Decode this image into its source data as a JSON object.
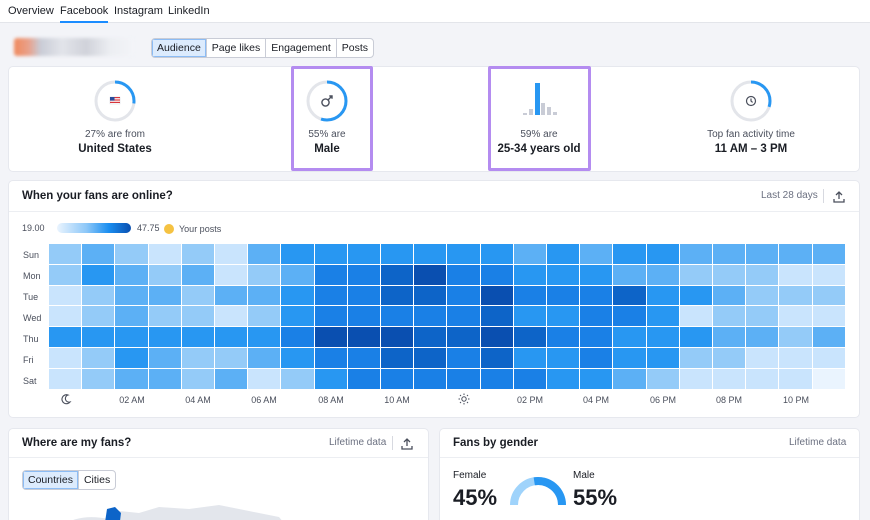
{
  "top_tabs": [
    {
      "label": "Overview",
      "active": false
    },
    {
      "label": "Facebook",
      "active": true
    },
    {
      "label": "Instagram",
      "active": false
    },
    {
      "label": "LinkedIn",
      "active": false
    }
  ],
  "sub_tabs": [
    {
      "label": "Audience",
      "active": true
    },
    {
      "label": "Page likes",
      "active": false
    },
    {
      "label": "Engagement",
      "active": false
    },
    {
      "label": "Posts",
      "active": false
    }
  ],
  "stats": [
    {
      "sub": "27% are from",
      "big": "United States",
      "icon": "us-flag-icon",
      "fraction": 0.27
    },
    {
      "sub": "55% are",
      "big": "Male",
      "icon": "male-symbol-icon",
      "fraction": 0.55
    },
    {
      "sub": "59% are",
      "big": "25-34 years old",
      "icon": "age-bars-icon",
      "fraction": 0.59
    },
    {
      "sub": "Top fan activity time",
      "big": "11 AM – 3 PM",
      "icon": "clock-icon",
      "fraction": 0.3
    }
  ],
  "online": {
    "title": "When your fans are online?",
    "period": "Last 28 days",
    "legend_min": "19.00",
    "legend_max": "47.75",
    "legend_posts": "Your posts",
    "days": [
      "Sun",
      "Mon",
      "Tue",
      "Wed",
      "Thu",
      "Fri",
      "Sat"
    ],
    "hours": [
      "02 AM",
      "04 AM",
      "06 AM",
      "08 AM",
      "10 AM",
      "02 PM",
      "04 PM",
      "06 PM",
      "08 PM",
      "10 PM"
    ],
    "colors": [
      "#eaf4fe",
      "#c9e4fd",
      "#94cbf8",
      "#5cb0f5",
      "#2897f2",
      "#1a80e6",
      "#0d64c8",
      "#0a4fb0"
    ],
    "grid": [
      [
        2,
        3,
        2,
        1,
        2,
        1,
        3,
        4,
        4,
        4,
        4,
        4,
        4,
        4,
        3,
        4,
        3,
        4,
        4,
        3,
        3,
        3,
        3,
        3
      ],
      [
        2,
        4,
        3,
        2,
        3,
        1,
        2,
        3,
        5,
        5,
        6,
        7,
        5,
        5,
        4,
        4,
        4,
        3,
        3,
        2,
        2,
        2,
        1,
        1
      ],
      [
        1,
        2,
        3,
        3,
        2,
        3,
        3,
        4,
        5,
        5,
        6,
        6,
        5,
        7,
        5,
        5,
        5,
        6,
        4,
        4,
        3,
        2,
        2,
        2
      ],
      [
        1,
        2,
        3,
        2,
        2,
        1,
        2,
        4,
        5,
        5,
        5,
        5,
        5,
        6,
        4,
        4,
        5,
        5,
        4,
        1,
        2,
        2,
        1,
        1
      ],
      [
        4,
        4,
        4,
        4,
        4,
        4,
        4,
        5,
        7,
        7,
        7,
        6,
        6,
        7,
        6,
        5,
        5,
        4,
        4,
        4,
        3,
        3,
        2,
        3
      ],
      [
        1,
        2,
        4,
        3,
        2,
        2,
        3,
        4,
        5,
        5,
        6,
        6,
        5,
        6,
        4,
        4,
        5,
        4,
        4,
        2,
        2,
        1,
        1,
        1
      ],
      [
        1,
        2,
        3,
        3,
        2,
        3,
        1,
        2,
        4,
        5,
        5,
        5,
        5,
        5,
        5,
        4,
        4,
        3,
        2,
        1,
        1,
        1,
        1,
        0
      ]
    ]
  },
  "where": {
    "title": "Where are my fans?",
    "period": "Lifetime data",
    "tabs": [
      {
        "label": "Countries",
        "active": true
      },
      {
        "label": "Cities",
        "active": false
      }
    ]
  },
  "gender": {
    "title": "Fans by gender",
    "period": "Lifetime data",
    "female_label": "Female",
    "female_value": "45%",
    "male_label": "Male",
    "male_value": "55%",
    "male_fraction": 0.55
  },
  "accent": "#1a8cff",
  "highlight_color": "#b48cf0"
}
